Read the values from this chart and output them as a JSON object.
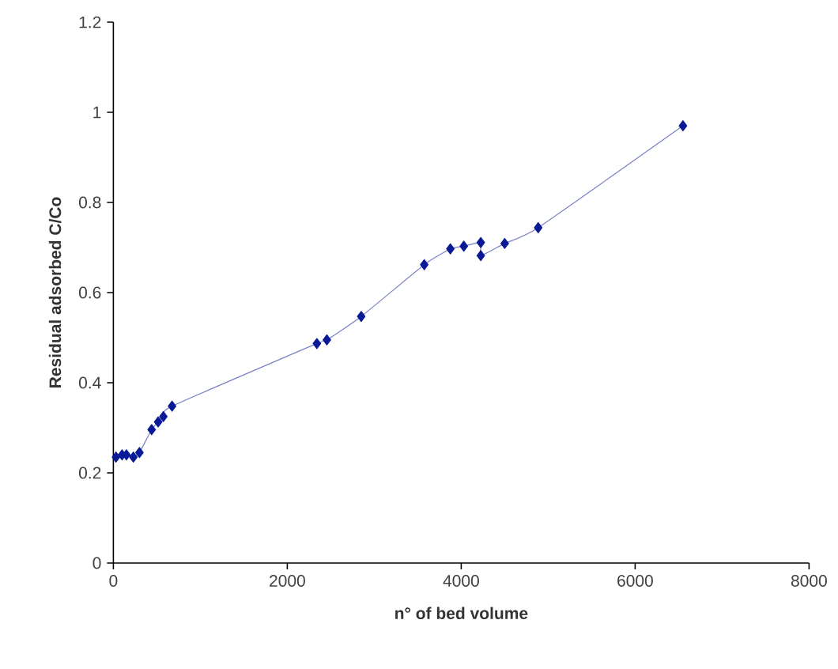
{
  "chart_data": {
    "type": "line",
    "xlabel": "n° of bed volume",
    "ylabel": "Residual adsorbed C/Co",
    "x": [
      30,
      100,
      150,
      230,
      300,
      440,
      515,
      575,
      675,
      2340,
      2455,
      2850,
      3575,
      3875,
      4030,
      4225,
      4225,
      4500,
      4885,
      6550
    ],
    "series": [
      {
        "color": "#0a1a96",
        "values": [
          0.235,
          0.24,
          0.24,
          0.235,
          0.245,
          0.296,
          0.313,
          0.325,
          0.348,
          0.487,
          0.495,
          0.547,
          0.662,
          0.697,
          0.703,
          0.711,
          0.682,
          0.709,
          0.744,
          0.97
        ]
      }
    ],
    "xlim": [
      0,
      8000
    ],
    "xticks": [
      0,
      2000,
      4000,
      6000,
      8000
    ],
    "ylim": [
      0,
      1.2
    ],
    "yticks": [
      0,
      0.2,
      0.4,
      0.6,
      0.8,
      1,
      1.2
    ],
    "marker": "diamond"
  }
}
